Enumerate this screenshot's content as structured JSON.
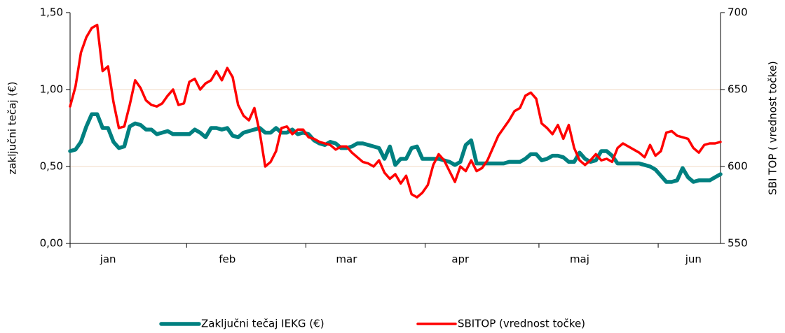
{
  "chart_data": {
    "type": "line",
    "y_axis_label": "zaključni tečaj  (€)",
    "y2_axis_label": "SBI TOP ( vrednost točke)",
    "categories": [
      null,
      null,
      null,
      null,
      null,
      null,
      null,
      "jan",
      null,
      null,
      null,
      null,
      null,
      null,
      null,
      null,
      null,
      null,
      null,
      null,
      null,
      null,
      null,
      null,
      null,
      null,
      null,
      null,
      null,
      "feb",
      null,
      null,
      null,
      null,
      null,
      null,
      null,
      null,
      null,
      null,
      null,
      null,
      null,
      null,
      null,
      null,
      null,
      null,
      null,
      null,
      null,
      "mar",
      null,
      null,
      null,
      null,
      null,
      null,
      null,
      null,
      null,
      null,
      null,
      null,
      null,
      null,
      null,
      null,
      null,
      null,
      null,
      null,
      "apr",
      null,
      null,
      null,
      null,
      null,
      null,
      null,
      null,
      null,
      null,
      null,
      null,
      null,
      null,
      null,
      null,
      null,
      null,
      null,
      null,
      null,
      "maj",
      null,
      null,
      null,
      null,
      null,
      null,
      null,
      null,
      null,
      null,
      null,
      null,
      null,
      null,
      null,
      null,
      null,
      null,
      null,
      null,
      "jun",
      null,
      null,
      null,
      null,
      null
    ],
    "series": [
      {
        "name": "Zaključni tečaj IEKG (€)",
        "color": "#008080",
        "axis": "y",
        "values": [
          0.6,
          0.61,
          0.66,
          0.76,
          0.84,
          0.84,
          0.75,
          0.75,
          0.66,
          0.62,
          0.63,
          0.76,
          0.78,
          0.77,
          0.74,
          0.74,
          0.71,
          0.72,
          0.73,
          0.71,
          0.71,
          0.71,
          0.71,
          0.74,
          0.72,
          0.69,
          0.75,
          0.75,
          0.74,
          0.75,
          0.7,
          0.69,
          0.72,
          0.73,
          0.74,
          0.75,
          0.72,
          0.72,
          0.75,
          0.72,
          0.72,
          0.74,
          0.71,
          0.72,
          0.71,
          0.67,
          0.65,
          0.64,
          0.66,
          0.65,
          0.62,
          0.62,
          0.63,
          0.65,
          0.65,
          0.64,
          0.63,
          0.62,
          0.55,
          0.63,
          0.51,
          0.55,
          0.55,
          0.62,
          0.63,
          0.55,
          0.55,
          0.55,
          0.55,
          0.54,
          0.53,
          0.51,
          0.53,
          0.64,
          0.67,
          0.52,
          0.52,
          0.52,
          0.52,
          0.52,
          0.52,
          0.53,
          0.53,
          0.53,
          0.55,
          0.58,
          0.58,
          0.54,
          0.55,
          0.57,
          0.57,
          0.56,
          0.53,
          0.53,
          0.59,
          0.55,
          0.53,
          0.54,
          0.6,
          0.6,
          0.57,
          0.52,
          0.52,
          0.52,
          0.52,
          0.52,
          0.51,
          0.5,
          0.48,
          0.44,
          0.4,
          0.4,
          0.41,
          0.49,
          0.43,
          0.4,
          0.41,
          0.41,
          0.41,
          0.43,
          0.45
        ]
      },
      {
        "name": "SBITOP (vrednost točke)",
        "color": "#ff0000",
        "axis": "y2",
        "values": [
          639,
          652,
          674,
          684,
          690,
          692,
          662,
          665,
          642,
          625,
          626,
          640,
          656,
          651,
          643,
          640,
          639,
          641,
          646,
          650,
          640,
          641,
          655,
          657,
          650,
          654,
          656,
          662,
          656,
          664,
          658,
          640,
          633,
          630,
          638,
          622,
          600,
          603,
          610,
          625,
          626,
          621,
          624,
          624,
          619,
          618,
          616,
          615,
          614,
          611,
          613,
          613,
          609,
          606,
          603,
          602,
          600,
          604,
          596,
          592,
          595,
          589,
          594,
          582,
          580,
          583,
          588,
          601,
          608,
          604,
          597,
          590,
          600,
          597,
          604,
          597,
          599,
          604,
          612,
          620,
          625,
          630,
          636,
          638,
          646,
          648,
          644,
          628,
          625,
          621,
          627,
          618,
          627,
          612,
          604,
          601,
          604,
          608,
          604,
          605,
          603,
          612,
          615,
          613,
          611,
          609,
          606,
          614,
          607,
          610,
          622,
          623,
          620,
          619,
          618,
          612,
          609,
          614,
          615,
          615,
          616
        ]
      }
    ],
    "ylim": [
      0,
      1.5
    ],
    "yticks": [
      {
        "value": 0,
        "label": "0,00"
      },
      {
        "value": 0.5,
        "label": "0,50"
      },
      {
        "value": 1,
        "label": "1,00"
      },
      {
        "value": 1.5,
        "label": "1,50"
      }
    ],
    "y2lim": [
      550,
      700
    ],
    "y2ticks": [
      550,
      600,
      650,
      700
    ],
    "grid": true,
    "grid_color": "#f2d9c4",
    "legend": "bottom"
  }
}
